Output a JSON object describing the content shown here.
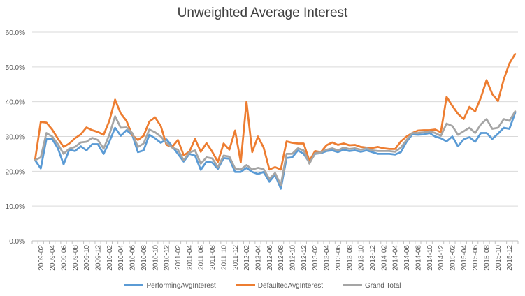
{
  "chart_data": {
    "type": "line",
    "title": "Unweighted Average Interest",
    "xlabel": "",
    "ylabel": "",
    "ylim": [
      0,
      0.6
    ],
    "y_ticks": [
      "0.0%",
      "10.0%",
      "20.0%",
      "30.0%",
      "40.0%",
      "50.0%",
      "60.0%"
    ],
    "grid": "horizontal",
    "legend": "bottom",
    "x": [
      "2009-01",
      "2009-02",
      "2009-03",
      "2009-04",
      "2009-05",
      "2009-06",
      "2009-07",
      "2009-08",
      "2009-09",
      "2009-10",
      "2009-11",
      "2009-12",
      "2010-01",
      "2010-02",
      "2010-03",
      "2010-04",
      "2010-05",
      "2010-06",
      "2010-07",
      "2010-08",
      "2010-09",
      "2010-10",
      "2010-11",
      "2010-12",
      "2011-01",
      "2011-02",
      "2011-03",
      "2011-04",
      "2011-05",
      "2011-06",
      "2011-07",
      "2011-08",
      "2011-09",
      "2011-10",
      "2011-11",
      "2011-12",
      "2012-01",
      "2012-02",
      "2012-03",
      "2012-04",
      "2012-05",
      "2012-06",
      "2012-07",
      "2012-08",
      "2012-09",
      "2012-10",
      "2012-11",
      "2012-12",
      "2013-01",
      "2013-02",
      "2013-03",
      "2013-04",
      "2013-05",
      "2013-06",
      "2013-07",
      "2013-08",
      "2013-09",
      "2013-10",
      "2013-11",
      "2013-12",
      "2014-01",
      "2014-02",
      "2014-03",
      "2014-04",
      "2014-05",
      "2014-06",
      "2014-07",
      "2014-08",
      "2014-09",
      "2014-10",
      "2014-11",
      "2014-12",
      "2015-01",
      "2015-02",
      "2015-03",
      "2015-04",
      "2015-05",
      "2015-06",
      "2015-07",
      "2015-08",
      "2015-09",
      "2015-10",
      "2015-11",
      "2015-12",
      "2016-01"
    ],
    "x_tick_labels": [
      "2009-02",
      "2009-04",
      "2009-06",
      "2009-08",
      "2009-10",
      "2009-12",
      "2010-02",
      "2010-04",
      "2010-06",
      "2010-08",
      "2010-10",
      "2010-12",
      "2011-02",
      "2011-04",
      "2011-06",
      "2011-08",
      "2011-10",
      "2011-12",
      "2012-02",
      "2012-04",
      "2012-06",
      "2012-08",
      "2012-10",
      "2012-12",
      "2013-02",
      "2013-04",
      "2013-06",
      "2013-08",
      "2013-10",
      "2013-12",
      "2014-02",
      "2014-04",
      "2014-06",
      "2014-08",
      "2014-10",
      "2014-12",
      "2015-02",
      "2015-04",
      "2015-06",
      "2015-08",
      "2015-10",
      "2015-12"
    ],
    "series": [
      {
        "name": "PerformingAvgInterest",
        "color": "#5B9BD5",
        "values": [
          0.232,
          0.208,
          0.293,
          0.293,
          0.266,
          0.22,
          0.262,
          0.258,
          0.272,
          0.26,
          0.278,
          0.278,
          0.25,
          0.285,
          0.325,
          0.302,
          0.318,
          0.305,
          0.255,
          0.26,
          0.305,
          0.295,
          0.282,
          0.292,
          0.272,
          0.25,
          0.228,
          0.25,
          0.245,
          0.204,
          0.228,
          0.225,
          0.207,
          0.238,
          0.236,
          0.198,
          0.198,
          0.21,
          0.198,
          0.192,
          0.198,
          0.17,
          0.19,
          0.15,
          0.238,
          0.24,
          0.26,
          0.25,
          0.225,
          0.25,
          0.252,
          0.258,
          0.26,
          0.255,
          0.262,
          0.258,
          0.26,
          0.256,
          0.26,
          0.255,
          0.25,
          0.25,
          0.25,
          0.248,
          0.255,
          0.285,
          0.306,
          0.305,
          0.306,
          0.31,
          0.3,
          0.295,
          0.286,
          0.3,
          0.272,
          0.292,
          0.298,
          0.285,
          0.31,
          0.31,
          0.293,
          0.308,
          0.325,
          0.322,
          0.368
        ]
      },
      {
        "name": "DefaultedAvgInterest",
        "color": "#ED7D31",
        "values": [
          0.232,
          0.342,
          0.34,
          0.32,
          0.294,
          0.27,
          0.28,
          0.295,
          0.306,
          0.326,
          0.318,
          0.313,
          0.305,
          0.345,
          0.406,
          0.366,
          0.345,
          0.304,
          0.29,
          0.302,
          0.343,
          0.355,
          0.33,
          0.276,
          0.27,
          0.29,
          0.246,
          0.256,
          0.293,
          0.256,
          0.281,
          0.256,
          0.227,
          0.28,
          0.262,
          0.317,
          0.226,
          0.4,
          0.255,
          0.3,
          0.268,
          0.205,
          0.212,
          0.205,
          0.286,
          0.282,
          0.28,
          0.28,
          0.23,
          0.258,
          0.255,
          0.275,
          0.283,
          0.276,
          0.28,
          0.275,
          0.276,
          0.27,
          0.268,
          0.267,
          0.27,
          0.266,
          0.264,
          0.264,
          0.286,
          0.3,
          0.31,
          0.317,
          0.318,
          0.318,
          0.32,
          0.312,
          0.414,
          0.388,
          0.365,
          0.35,
          0.385,
          0.372,
          0.412,
          0.462,
          0.422,
          0.402,
          0.464,
          0.51,
          0.537
        ]
      },
      {
        "name": "Grand Total",
        "color": "#A5A5A5",
        "values": [
          0.232,
          0.24,
          0.31,
          0.3,
          0.278,
          0.25,
          0.265,
          0.27,
          0.283,
          0.285,
          0.296,
          0.29,
          0.265,
          0.305,
          0.358,
          0.325,
          0.326,
          0.31,
          0.27,
          0.28,
          0.32,
          0.312,
          0.3,
          0.282,
          0.268,
          0.262,
          0.232,
          0.254,
          0.26,
          0.222,
          0.24,
          0.237,
          0.212,
          0.245,
          0.242,
          0.208,
          0.205,
          0.218,
          0.205,
          0.21,
          0.206,
          0.178,
          0.195,
          0.16,
          0.25,
          0.25,
          0.266,
          0.26,
          0.222,
          0.252,
          0.254,
          0.262,
          0.266,
          0.26,
          0.268,
          0.264,
          0.266,
          0.262,
          0.266,
          0.26,
          0.258,
          0.258,
          0.258,
          0.256,
          0.268,
          0.29,
          0.31,
          0.31,
          0.312,
          0.315,
          0.31,
          0.302,
          0.337,
          0.33,
          0.305,
          0.315,
          0.325,
          0.31,
          0.335,
          0.35,
          0.322,
          0.325,
          0.35,
          0.345,
          0.372
        ]
      }
    ]
  }
}
